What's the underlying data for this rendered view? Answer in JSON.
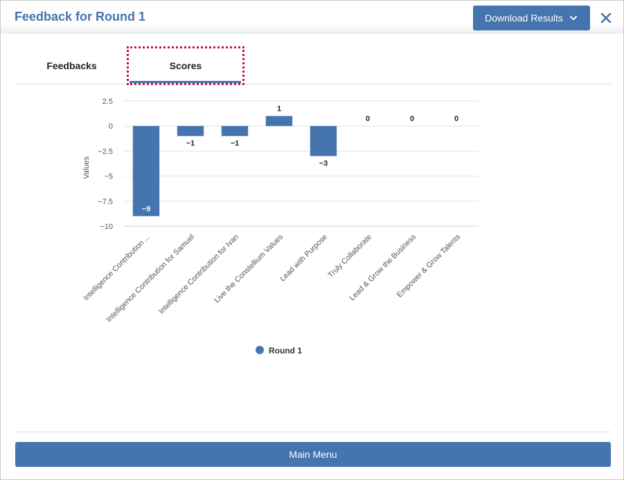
{
  "header": {
    "title": "Feedback for Round 1",
    "download_label": "Download Results"
  },
  "tabs": [
    {
      "label": "Feedbacks"
    },
    {
      "label": "Scores"
    }
  ],
  "footer": {
    "main_menu_label": "Main Menu"
  },
  "colors": {
    "accent": "#4574ae",
    "focus_outline": "#c0143c"
  },
  "chart_data": {
    "type": "bar",
    "categories": [
      "Intelligence Contribution ...",
      "Intelligence Contribution for Samuel",
      "Intelligence Contribution for Ivan",
      "Live the Constellium Values",
      "Lead with Purpose",
      "Truly Collaborate",
      "Lead & Grow the Business",
      "Empower & Grow Talents"
    ],
    "series": [
      {
        "name": "Round 1",
        "values": [
          -9,
          -1,
          -1,
          1,
          -3,
          0,
          0,
          0
        ],
        "color": "#4574ae"
      }
    ],
    "ylabel": "Values",
    "ylim": [
      -10,
      2.5
    ],
    "yticks": [
      2.5,
      0,
      -2.5,
      -5,
      -7.5,
      -10
    ],
    "ytick_labels": [
      "2.5",
      "0",
      "−2.5",
      "−5",
      "−7.5",
      "−10"
    ],
    "value_labels": [
      "−9",
      "−1",
      "−1",
      "1",
      "−3",
      "0",
      "0",
      "0"
    ],
    "grid": true,
    "legend": "bottom-center"
  }
}
